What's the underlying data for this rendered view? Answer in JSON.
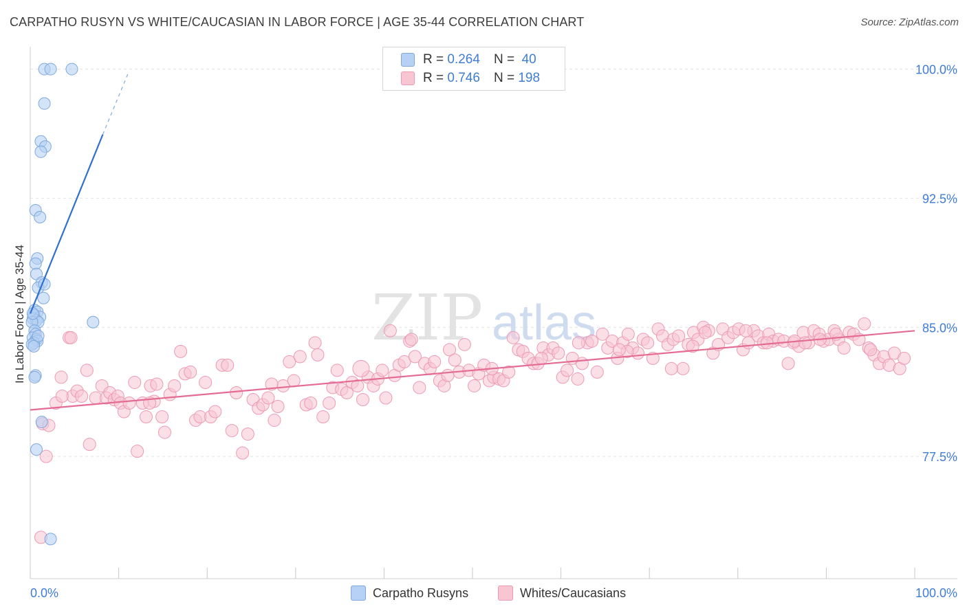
{
  "header": {
    "title": "CARPATHO RUSYN VS WHITE/CAUCASIAN IN LABOR FORCE | AGE 35-44 CORRELATION CHART",
    "source": "Source: ZipAtlas.com"
  },
  "legend_top": {
    "rows": [
      {
        "r_label": "R =",
        "r_value": "0.264",
        "n_label": "N =",
        "n_value": "40"
      },
      {
        "r_label": "R =",
        "r_value": "0.746",
        "n_label": "N =",
        "n_value": "198"
      }
    ]
  },
  "legend_bottom": {
    "items": [
      "Carpatho Rusyns",
      "Whites/Caucasians"
    ]
  },
  "watermark": {
    "zip": "ZIP",
    "atlas": "atlas"
  },
  "colors": {
    "blue_fill": "#b6d1f3",
    "blue_stroke": "#7ea8dd",
    "blue_line": "#2f6fd1",
    "pink_fill": "#f8c5d3",
    "pink_stroke": "#ec9ab3",
    "pink_line": "#e46b93",
    "axis_text": "#3f7dd4"
  },
  "chart_data": {
    "type": "scatter",
    "title": "CARPATHO RUSYN VS WHITE/CAUCASIAN IN LABOR FORCE | AGE 35-44 CORRELATION CHART",
    "xlabel": "",
    "ylabel": "In Labor Force | Age 35-44",
    "xlim": [
      0,
      100
    ],
    "ylim": [
      70.4,
      101.3
    ],
    "x_tick_labels": [
      "0.0%",
      "100.0%"
    ],
    "y_ticks": [
      77.5,
      85.0,
      92.5,
      100.0
    ],
    "y_tick_labels": [
      "77.5%",
      "85.0%",
      "92.5%",
      "100.0%"
    ],
    "grid": true,
    "series": [
      {
        "name": "Carpatho Rusyns",
        "R": 0.264,
        "N": 40,
        "trend": {
          "x0": 0.0,
          "y0": 85.8,
          "x1": 8.2,
          "y1": 96.2,
          "dash_to_x": 11.1,
          "dash_to_y": 99.8
        },
        "points": [
          [
            1.6,
            100.0
          ],
          [
            2.3,
            100.0
          ],
          [
            4.7,
            100.0
          ],
          [
            1.6,
            98.0
          ],
          [
            1.2,
            95.8
          ],
          [
            1.7,
            95.5
          ],
          [
            1.2,
            95.2
          ],
          [
            0.6,
            91.8
          ],
          [
            1.1,
            91.4
          ],
          [
            0.8,
            89.0
          ],
          [
            0.6,
            88.7
          ],
          [
            0.7,
            88.1
          ],
          [
            1.3,
            87.6
          ],
          [
            0.9,
            87.3
          ],
          [
            1.6,
            87.5
          ],
          [
            1.5,
            86.7
          ],
          [
            0.5,
            86.0
          ],
          [
            0.8,
            85.9
          ],
          [
            0.4,
            85.7
          ],
          [
            1.1,
            85.6
          ],
          [
            0.3,
            85.5
          ],
          [
            0.7,
            85.4
          ],
          [
            0.9,
            85.3
          ],
          [
            7.1,
            85.3
          ],
          [
            0.2,
            85.3
          ],
          [
            0.5,
            84.8
          ],
          [
            0.6,
            84.6
          ],
          [
            0.3,
            84.4
          ],
          [
            0.7,
            84.3
          ],
          [
            0.8,
            84.2
          ],
          [
            0.4,
            84.1
          ],
          [
            0.2,
            84.0
          ],
          [
            0.6,
            82.2
          ],
          [
            0.5,
            82.1
          ],
          [
            1.3,
            79.5
          ],
          [
            0.7,
            77.9
          ],
          [
            2.3,
            72.7
          ],
          [
            0.9,
            84.5
          ],
          [
            0.4,
            83.9
          ],
          [
            0.3,
            85.8
          ]
        ]
      },
      {
        "name": "Whites/Caucasians",
        "R": 0.746,
        "N": 198,
        "trend": {
          "x0": 0.0,
          "y0": 80.2,
          "x1": 100.0,
          "y1": 84.8
        },
        "points": [
          [
            1.2,
            72.8
          ],
          [
            1.8,
            77.5
          ],
          [
            2.9,
            80.6
          ],
          [
            1.4,
            79.4
          ],
          [
            2.1,
            79.3
          ],
          [
            3.5,
            82.1
          ],
          [
            4.4,
            84.4
          ],
          [
            4.8,
            81.0
          ],
          [
            5.3,
            81.3
          ],
          [
            5.8,
            81.0
          ],
          [
            6.4,
            82.5
          ],
          [
            6.7,
            78.2
          ],
          [
            7.4,
            80.9
          ],
          [
            8.1,
            81.6
          ],
          [
            8.6,
            80.9
          ],
          [
            9.0,
            81.2
          ],
          [
            9.5,
            80.8
          ],
          [
            9.9,
            81.0
          ],
          [
            10.2,
            80.6
          ],
          [
            10.6,
            80.1
          ],
          [
            11.2,
            80.6
          ],
          [
            11.8,
            81.8
          ],
          [
            12.1,
            77.8
          ],
          [
            12.7,
            80.6
          ],
          [
            13.1,
            79.8
          ],
          [
            13.6,
            81.6
          ],
          [
            14.0,
            80.7
          ],
          [
            14.3,
            81.7
          ],
          [
            14.9,
            79.8
          ],
          [
            15.2,
            78.9
          ],
          [
            15.8,
            81.1
          ],
          [
            16.3,
            81.6
          ],
          [
            17.0,
            83.6
          ],
          [
            17.5,
            82.3
          ],
          [
            18.1,
            82.4
          ],
          [
            18.7,
            79.6
          ],
          [
            19.2,
            79.8
          ],
          [
            19.8,
            81.8
          ],
          [
            20.4,
            79.8
          ],
          [
            20.9,
            80.1
          ],
          [
            21.7,
            82.8
          ],
          [
            22.3,
            82.8
          ],
          [
            22.8,
            79.0
          ],
          [
            23.3,
            81.2
          ],
          [
            24.0,
            77.7
          ],
          [
            24.6,
            78.8
          ],
          [
            25.2,
            80.8
          ],
          [
            25.8,
            80.3
          ],
          [
            26.3,
            80.5
          ],
          [
            26.9,
            80.9
          ],
          [
            27.6,
            79.6
          ],
          [
            28.0,
            80.4
          ],
          [
            28.6,
            81.6
          ],
          [
            29.3,
            83.0
          ],
          [
            29.8,
            81.9
          ],
          [
            30.5,
            83.3
          ],
          [
            31.2,
            80.5
          ],
          [
            31.7,
            80.6
          ],
          [
            32.2,
            84.1
          ],
          [
            32.5,
            83.4
          ],
          [
            33.1,
            79.8
          ],
          [
            33.8,
            80.6
          ],
          [
            34.2,
            81.5
          ],
          [
            34.7,
            82.5
          ],
          [
            35.2,
            81.4
          ],
          [
            35.8,
            81.2
          ],
          [
            36.4,
            81.8
          ],
          [
            37.0,
            81.6
          ],
          [
            37.6,
            80.8
          ],
          [
            38.2,
            82.1
          ],
          [
            38.8,
            81.6
          ],
          [
            39.3,
            82.0
          ],
          [
            39.8,
            82.5
          ],
          [
            40.2,
            80.9
          ],
          [
            40.7,
            84.8
          ],
          [
            41.2,
            82.2
          ],
          [
            41.7,
            82.8
          ],
          [
            42.3,
            83.0
          ],
          [
            42.9,
            84.2
          ],
          [
            43.5,
            83.3
          ],
          [
            44.0,
            81.5
          ],
          [
            44.6,
            82.9
          ],
          [
            45.2,
            82.6
          ],
          [
            45.7,
            83.0
          ],
          [
            46.3,
            81.9
          ],
          [
            46.8,
            81.6
          ],
          [
            47.4,
            83.7
          ],
          [
            48.0,
            83.1
          ],
          [
            48.5,
            82.4
          ],
          [
            49.1,
            84.0
          ],
          [
            49.6,
            82.5
          ],
          [
            50.2,
            81.6
          ],
          [
            50.7,
            82.3
          ],
          [
            51.3,
            82.8
          ],
          [
            51.9,
            81.9
          ],
          [
            52.4,
            82.1
          ],
          [
            53.0,
            82.0
          ],
          [
            53.5,
            81.9
          ],
          [
            54.1,
            82.4
          ],
          [
            54.6,
            84.4
          ],
          [
            55.2,
            83.7
          ],
          [
            55.7,
            83.6
          ],
          [
            56.3,
            83.2
          ],
          [
            56.9,
            82.9
          ],
          [
            57.4,
            82.9
          ],
          [
            58.0,
            83.8
          ],
          [
            58.6,
            83.4
          ],
          [
            59.1,
            83.8
          ],
          [
            59.7,
            83.5
          ],
          [
            60.2,
            82.1
          ],
          [
            60.7,
            82.5
          ],
          [
            61.3,
            83.2
          ],
          [
            61.9,
            82.0
          ],
          [
            62.4,
            82.9
          ],
          [
            63.0,
            84.1
          ],
          [
            63.5,
            84.2
          ],
          [
            64.1,
            82.4
          ],
          [
            64.7,
            84.6
          ],
          [
            65.3,
            83.8
          ],
          [
            65.8,
            84.2
          ],
          [
            66.4,
            83.2
          ],
          [
            67.0,
            84.1
          ],
          [
            67.6,
            84.6
          ],
          [
            68.1,
            83.8
          ],
          [
            68.7,
            83.5
          ],
          [
            69.3,
            84.3
          ],
          [
            69.8,
            84.1
          ],
          [
            70.4,
            83.2
          ],
          [
            71.0,
            84.9
          ],
          [
            71.5,
            84.5
          ],
          [
            72.1,
            84.0
          ],
          [
            72.7,
            84.3
          ],
          [
            73.3,
            84.5
          ],
          [
            73.8,
            82.6
          ],
          [
            74.4,
            84.0
          ],
          [
            75.0,
            84.7
          ],
          [
            75.5,
            84.3
          ],
          [
            76.1,
            85.0
          ],
          [
            76.7,
            84.8
          ],
          [
            77.2,
            83.5
          ],
          [
            77.8,
            84.0
          ],
          [
            78.3,
            84.9
          ],
          [
            78.9,
            84.4
          ],
          [
            79.5,
            84.7
          ],
          [
            80.1,
            84.9
          ],
          [
            80.6,
            83.7
          ],
          [
            81.2,
            84.1
          ],
          [
            81.8,
            84.8
          ],
          [
            82.3,
            84.5
          ],
          [
            82.9,
            84.1
          ],
          [
            83.5,
            84.6
          ],
          [
            84.0,
            84.2
          ],
          [
            84.6,
            84.3
          ],
          [
            85.2,
            84.2
          ],
          [
            85.7,
            82.9
          ],
          [
            86.3,
            84.1
          ],
          [
            86.9,
            83.9
          ],
          [
            87.4,
            84.7
          ],
          [
            88.0,
            84.1
          ],
          [
            88.6,
            84.8
          ],
          [
            89.2,
            84.6
          ],
          [
            89.7,
            84.2
          ],
          [
            90.3,
            84.3
          ],
          [
            90.9,
            84.8
          ],
          [
            91.4,
            84.3
          ],
          [
            92.0,
            83.8
          ],
          [
            92.6,
            84.7
          ],
          [
            93.1,
            84.6
          ],
          [
            93.7,
            84.3
          ],
          [
            94.3,
            85.2
          ],
          [
            94.8,
            83.8
          ],
          [
            95.4,
            83.4
          ],
          [
            96.0,
            82.9
          ],
          [
            96.5,
            83.3
          ],
          [
            97.1,
            82.8
          ],
          [
            97.7,
            83.5
          ],
          [
            98.3,
            82.6
          ],
          [
            98.8,
            83.2
          ],
          [
            4.6,
            84.4
          ],
          [
            43.1,
            84.3
          ],
          [
            52.2,
            82.6
          ],
          [
            72.5,
            82.6
          ],
          [
            76.3,
            84.7
          ],
          [
            80.9,
            84.8
          ],
          [
            86.4,
            84.2
          ],
          [
            89.3,
            84.3
          ],
          [
            91.1,
            84.6
          ],
          [
            95.0,
            83.7
          ],
          [
            3.6,
            81.0
          ],
          [
            13.5,
            80.6
          ],
          [
            27.3,
            81.7
          ],
          [
            37.4,
            82.6
          ],
          [
            47.2,
            82.2
          ],
          [
            57.8,
            83.2
          ],
          [
            67.5,
            83.6
          ],
          [
            62.0,
            84.1
          ],
          [
            66.6,
            83.7
          ],
          [
            74.9,
            83.9
          ],
          [
            83.3,
            84.1
          ],
          [
            87.6,
            84.1
          ]
        ],
        "large_points": [
          [
            37.4,
            82.6
          ]
        ]
      }
    ]
  }
}
